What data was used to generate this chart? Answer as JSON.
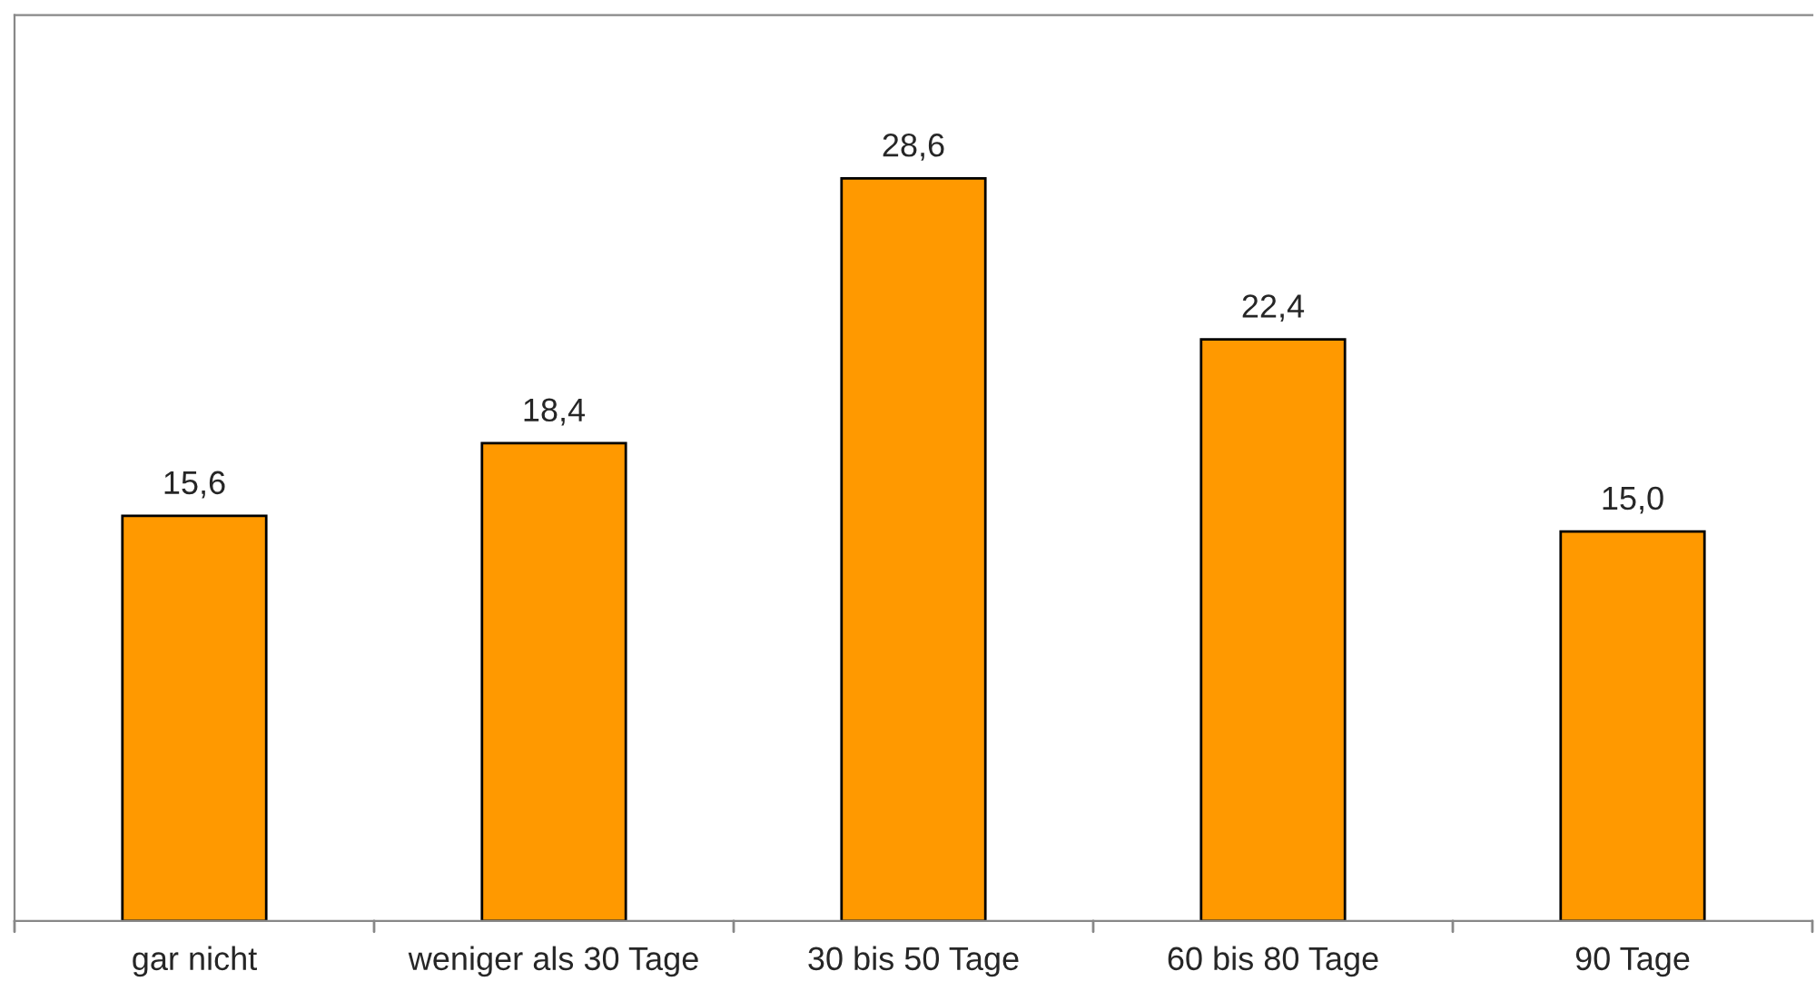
{
  "chart_data": {
    "type": "bar",
    "categories": [
      "gar nicht",
      "weniger als 30 Tage",
      "30 bis 50 Tage",
      "60 bis 80 Tage",
      "90 Tage"
    ],
    "values": [
      15.6,
      18.4,
      28.6,
      22.4,
      15.0
    ],
    "value_labels": [
      "15,6",
      "18,4",
      "28,6",
      "22,4",
      "15,0"
    ],
    "color": "#ff9900",
    "grid": false,
    "legend": false
  }
}
